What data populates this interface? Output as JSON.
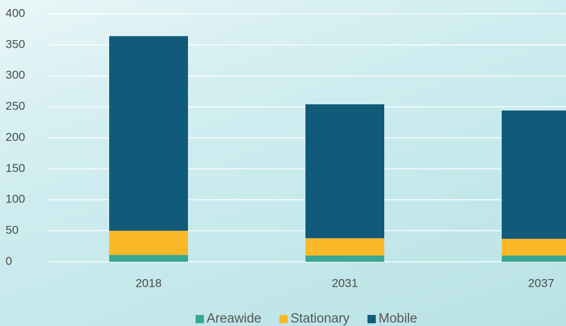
{
  "chart_data": {
    "type": "stacked_bar",
    "categories": [
      "2018",
      "2031",
      "2037"
    ],
    "series": [
      {
        "name": "Areawide",
        "color": "#3aa694",
        "values": [
          11,
          10,
          10
        ]
      },
      {
        "name": "Stationary",
        "color": "#fbb829",
        "values": [
          39,
          28,
          27
        ]
      },
      {
        "name": "Mobile",
        "color": "#115a7a",
        "values": [
          314,
          216,
          207
        ]
      }
    ],
    "ylim": [
      0,
      400
    ],
    "yticks": [
      0,
      50,
      100,
      150,
      200,
      250,
      300,
      350,
      400
    ],
    "grid": true,
    "legend": "bottom"
  }
}
